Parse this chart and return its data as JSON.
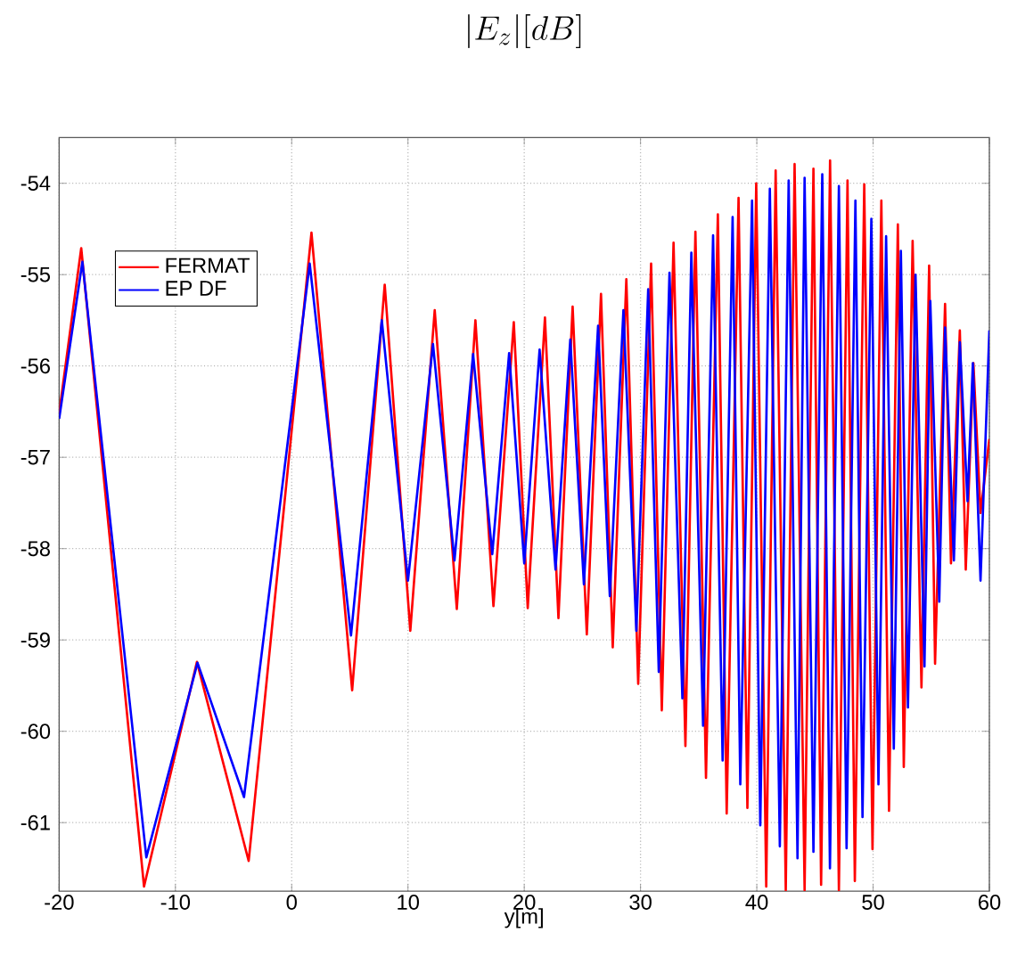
{
  "chart_data": {
    "type": "line",
    "title": "|E_z|[dB]",
    "xlabel": "y[m]",
    "xlim": [
      -20,
      60
    ],
    "ylim": [
      -61.75,
      -53.5
    ],
    "xticks": [
      -20,
      -10,
      0,
      10,
      20,
      30,
      40,
      50,
      60
    ],
    "yticks": [
      -61,
      -60,
      -59,
      -58,
      -57,
      -56,
      -55,
      -54
    ],
    "grid": true,
    "legend": "top left",
    "series": [
      {
        "name": "FERMAT",
        "color": "#ff0000",
        "x": [
          -20,
          -18.1,
          -12.7,
          -8.15,
          -3.7,
          1.7,
          5.2,
          8.0,
          10.2,
          12.3,
          14.2,
          15.8,
          17.35,
          19.1,
          20.3,
          21.78,
          22.94,
          24.16,
          25.38,
          26.6,
          27.61,
          28.78,
          29.8,
          30.91,
          31.83,
          32.84,
          33.86,
          34.72,
          35.63,
          36.65,
          37.41,
          38.43,
          39.19,
          39.95,
          40.81,
          41.62,
          42.49,
          43.25,
          44.11,
          44.87,
          45.53,
          46.3,
          47.06,
          47.8,
          48.43,
          49.24,
          49.95,
          50.71,
          51.37,
          52.13,
          52.64,
          53.4,
          54.16,
          54.82,
          55.33,
          56.19,
          56.7,
          57.46,
          57.97,
          58.63,
          59.24,
          60
        ],
        "values": [
          -56.52,
          -54.71,
          -61.7,
          -59.24,
          -61.42,
          -54.54,
          -59.55,
          -55.11,
          -58.9,
          -55.39,
          -58.66,
          -55.5,
          -58.63,
          -55.52,
          -58.65,
          -55.47,
          -58.76,
          -55.35,
          -58.94,
          -55.21,
          -59.08,
          -55.05,
          -59.48,
          -54.88,
          -59.77,
          -54.65,
          -60.16,
          -54.53,
          -60.51,
          -54.34,
          -60.9,
          -54.16,
          -60.84,
          -54.0,
          -61.7,
          -53.86,
          -61.74,
          -53.79,
          -61.74,
          -53.84,
          -61.68,
          -53.75,
          -61.74,
          -53.97,
          -61.64,
          -54.01,
          -61.29,
          -54.19,
          -60.87,
          -54.45,
          -60.39,
          -54.63,
          -59.52,
          -54.9,
          -59.26,
          -55.32,
          -58.16,
          -55.61,
          -58.23,
          -55.97,
          -57.61,
          -56.8
        ]
      },
      {
        "name": "EP DF",
        "color": "#0000ff",
        "x": [
          -20,
          -18.0,
          -12.5,
          -8.1,
          -4.1,
          1.55,
          5.1,
          7.75,
          10.0,
          12.15,
          14.0,
          15.6,
          17.25,
          18.7,
          20.0,
          21.32,
          22.69,
          23.96,
          25.13,
          26.35,
          27.36,
          28.53,
          29.64,
          30.66,
          31.57,
          32.49,
          33.6,
          34.37,
          35.38,
          36.24,
          37.06,
          37.92,
          38.58,
          39.59,
          40.3,
          41.12,
          41.98,
          42.74,
          43.5,
          44.11,
          44.87,
          45.63,
          46.29,
          47.06,
          47.72,
          48.48,
          49.09,
          49.85,
          50.46,
          51.12,
          51.78,
          52.39,
          53.0,
          53.65,
          54.42,
          54.92,
          55.69,
          56.19,
          56.95,
          57.46,
          58.12,
          58.58,
          59.24,
          60
        ],
        "values": [
          -56.58,
          -54.86,
          -61.38,
          -59.25,
          -60.72,
          -54.88,
          -58.95,
          -55.5,
          -58.35,
          -55.76,
          -58.13,
          -55.87,
          -58.06,
          -55.86,
          -58.16,
          -55.82,
          -58.23,
          -55.71,
          -58.39,
          -55.56,
          -58.52,
          -55.39,
          -58.9,
          -55.16,
          -59.35,
          -54.98,
          -59.64,
          -54.76,
          -59.94,
          -54.57,
          -60.32,
          -54.37,
          -60.58,
          -54.19,
          -61.03,
          -54.06,
          -61.26,
          -53.97,
          -61.39,
          -53.94,
          -61.32,
          -53.9,
          -61.5,
          -54.03,
          -61.28,
          -54.19,
          -60.94,
          -54.39,
          -60.58,
          -54.58,
          -60.19,
          -54.74,
          -59.74,
          -55.0,
          -59.29,
          -55.29,
          -58.58,
          -55.58,
          -58.13,
          -55.74,
          -57.48,
          -55.97,
          -58.35,
          -55.61
        ]
      }
    ]
  }
}
